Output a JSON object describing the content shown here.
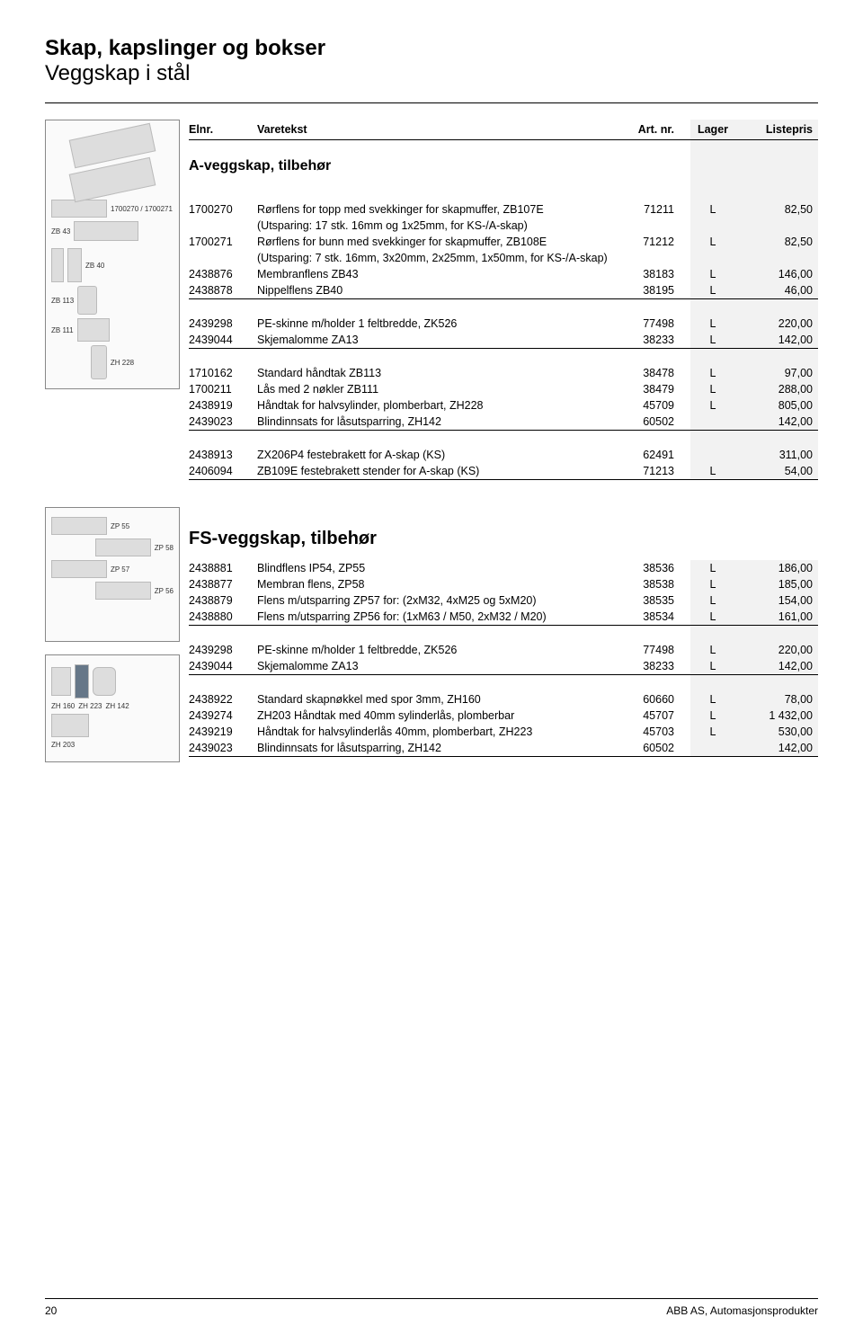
{
  "page": {
    "title": "Skap, kapslinger og bokser",
    "subtitle": "Veggskap i stål",
    "footer_page": "20",
    "footer_right": "ABB AS, Automasjonsprodukter"
  },
  "table_headers": {
    "elnr": "Elnr.",
    "varetekst": "Varetekst",
    "art": "Art. nr.",
    "lager": "Lager",
    "listepris": "Listepris"
  },
  "section_a": {
    "heading": "A-veggskap, tilbehør",
    "image_labels": {
      "combo": "1700270 / 1700271",
      "zb43": "ZB 43",
      "zb40": "ZB 40",
      "zb113": "ZB 113",
      "zb111": "ZB 111",
      "zh228": "ZH 228"
    },
    "groups": [
      {
        "rows": [
          {
            "elnr": "1700270",
            "desc": "Rørflens for topp med svekkinger for skapmuffer, ZB107E",
            "art": "71211",
            "lager": "L",
            "price": "82,50"
          },
          {
            "elnr": "",
            "desc": "(Utsparing: 17 stk. 16mm og 1x25mm, for KS-/A-skap)",
            "art": "",
            "lager": "",
            "price": ""
          },
          {
            "elnr": "1700271",
            "desc": "Rørflens for bunn med svekkinger for skapmuffer, ZB108E",
            "art": "71212",
            "lager": "L",
            "price": "82,50"
          },
          {
            "elnr": "",
            "desc": "(Utsparing: 7 stk. 16mm, 3x20mm, 2x25mm, 1x50mm, for KS-/A-skap)",
            "art": "",
            "lager": "",
            "price": ""
          },
          {
            "elnr": "2438876",
            "desc": "Membranflens ZB43",
            "art": "38183",
            "lager": "L",
            "price": "146,00"
          },
          {
            "elnr": "2438878",
            "desc": "Nippelflens ZB40",
            "art": "38195",
            "lager": "L",
            "price": "46,00",
            "ruled": true
          }
        ]
      },
      {
        "rows": [
          {
            "elnr": "2439298",
            "desc": "PE-skinne m/holder 1 feltbredde, ZK526",
            "art": "77498",
            "lager": "L",
            "price": "220,00"
          },
          {
            "elnr": "2439044",
            "desc": "Skjemalomme ZA13",
            "art": "38233",
            "lager": "L",
            "price": "142,00",
            "ruled": true
          }
        ]
      },
      {
        "rows": [
          {
            "elnr": "1710162",
            "desc": "Standard håndtak ZB113",
            "art": "38478",
            "lager": "L",
            "price": "97,00"
          },
          {
            "elnr": "1700211",
            "desc": "Lås med 2 nøkler ZB111",
            "art": "38479",
            "lager": "L",
            "price": "288,00"
          },
          {
            "elnr": "2438919",
            "desc": "Håndtak for halvsylinder, plomberbart, ZH228",
            "art": "45709",
            "lager": "L",
            "price": "805,00"
          },
          {
            "elnr": "2439023",
            "desc": "Blindinnsats for låsutsparring, ZH142",
            "art": "60502",
            "lager": "",
            "price": "142,00",
            "ruled": true
          }
        ]
      },
      {
        "rows": [
          {
            "elnr": "2438913",
            "desc": "ZX206P4 festebrakett for A-skap (KS)",
            "art": "62491",
            "lager": "",
            "price": "311,00"
          },
          {
            "elnr": "2406094",
            "desc": "ZB109E festebrakett stender for A-skap (KS)",
            "art": "71213",
            "lager": "L",
            "price": "54,00",
            "ruled": true
          }
        ]
      }
    ]
  },
  "section_fs": {
    "heading": "FS-veggskap, tilbehør",
    "image_labels": {
      "zp55": "ZP 55",
      "zp58": "ZP 58",
      "zp57": "ZP 57",
      "zp56": "ZP 56",
      "zh160": "ZH 160",
      "zh223": "ZH 223",
      "zh142": "ZH 142",
      "zh203": "ZH 203"
    },
    "groups": [
      {
        "rows": [
          {
            "elnr": "2438881",
            "desc": "Blindflens IP54, ZP55",
            "art": "38536",
            "lager": "L",
            "price": "186,00"
          },
          {
            "elnr": "2438877",
            "desc": "Membran flens, ZP58",
            "art": "38538",
            "lager": "L",
            "price": "185,00"
          },
          {
            "elnr": "2438879",
            "desc": "Flens m/utsparring ZP57 for: (2xM32, 4xM25 og 5xM20)",
            "art": "38535",
            "lager": "L",
            "price": "154,00"
          },
          {
            "elnr": "2438880",
            "desc": "Flens m/utsparring ZP56 for: (1xM63 / M50, 2xM32 / M20)",
            "art": "38534",
            "lager": "L",
            "price": "161,00",
            "ruled": true
          }
        ]
      },
      {
        "rows": [
          {
            "elnr": "2439298",
            "desc": "PE-skinne m/holder 1 feltbredde, ZK526",
            "art": "77498",
            "lager": "L",
            "price": "220,00"
          },
          {
            "elnr": "2439044",
            "desc": "Skjemalomme ZA13",
            "art": "38233",
            "lager": "L",
            "price": "142,00",
            "ruled": true
          }
        ]
      },
      {
        "rows": [
          {
            "elnr": "2438922",
            "desc": "Standard skapnøkkel med spor 3mm, ZH160",
            "art": "60660",
            "lager": "L",
            "price": "78,00"
          },
          {
            "elnr": "2439274",
            "desc": "ZH203 Håndtak med 40mm sylinderlås, plomberbar",
            "art": "45707",
            "lager": "L",
            "price": "1 432,00"
          },
          {
            "elnr": "2439219",
            "desc": "Håndtak for halvsylinderlås 40mm, plomberbart, ZH223",
            "art": "45703",
            "lager": "L",
            "price": "530,00"
          },
          {
            "elnr": "2439023",
            "desc": "Blindinnsats for låsutsparring, ZH142",
            "art": "60502",
            "lager": "",
            "price": "142,00",
            "ruled": true
          }
        ]
      }
    ]
  }
}
